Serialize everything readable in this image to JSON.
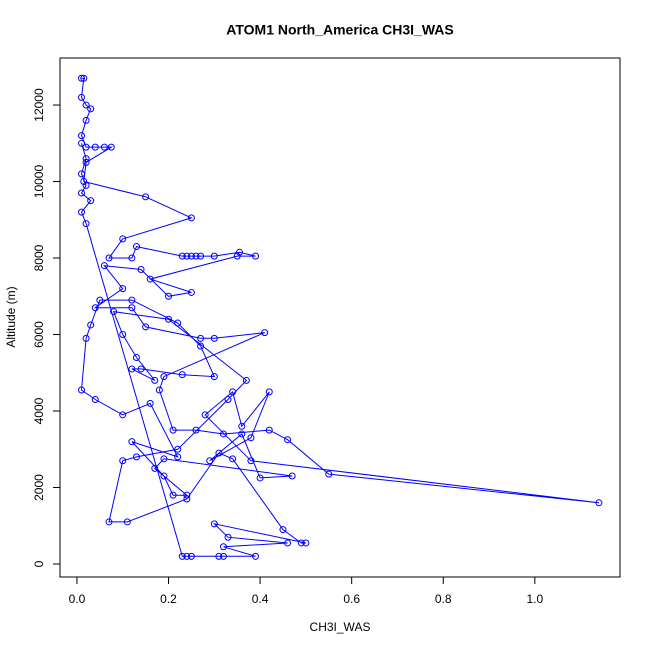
{
  "chart_data": {
    "type": "line",
    "title": "ATOM1 North_America CH3I_WAS",
    "x_label": "CH3I_WAS",
    "y_label": "Altitude (m)",
    "xlim": [
      -0.037,
      1.186
    ],
    "ylim": [
      -340,
      13230
    ],
    "xticks": [
      {
        "value": 0,
        "label": "0.0"
      },
      {
        "value": 0.2,
        "label": "0.2"
      },
      {
        "value": 0.4,
        "label": "0.4"
      },
      {
        "value": 0.6,
        "label": "0.6"
      },
      {
        "value": 0.8,
        "label": "0.8"
      },
      {
        "value": 1.0,
        "label": "1.0"
      }
    ],
    "yticks": [
      0,
      2000,
      4000,
      6000,
      8000,
      10000,
      12000
    ],
    "markers": true,
    "x": [
      0.01,
      0.015,
      0.01,
      0.02,
      0.03,
      0.02,
      0.01,
      0.02,
      0.04,
      0.06,
      0.075,
      0.02,
      0.015,
      0.15,
      0.25,
      0.1,
      0.07,
      0.12,
      0.13,
      0.23,
      0.26,
      0.27,
      0.25,
      0.24,
      0.3,
      0.355,
      0.39,
      0.35,
      0.16,
      0.25,
      0.2,
      0.14,
      0.06,
      0.1,
      0.04,
      0.12,
      0.15,
      0.27,
      0.3,
      0.41,
      0.19,
      0.18,
      0.21,
      0.26,
      0.32,
      0.42,
      0.46,
      0.55,
      1.14,
      0.38,
      0.28,
      0.34,
      0.36,
      0.42,
      0.38,
      0.29,
      0.36,
      0.4,
      0.47,
      0.19,
      0.17,
      0.24,
      0.21,
      0.19,
      0.12,
      0.22,
      0.16,
      0.1,
      0.04,
      0.01,
      0.02,
      0.03,
      0.05,
      0.12,
      0.22,
      0.27,
      0.3,
      0.23,
      0.14,
      0.12,
      0.17,
      0.13,
      0.1,
      0.08,
      0.2,
      0.37,
      0.33,
      0.22,
      0.13,
      0.1,
      0.07,
      0.11,
      0.24,
      0.31,
      0.34,
      0.45,
      0.49,
      0.5,
      0.3,
      0.33,
      0.46,
      0.32,
      0.39,
      0.31,
      0.32,
      0.24,
      0.25,
      0.23,
      0.02,
      0.01,
      0.03,
      0.01,
      0.02,
      0.01,
      0.02,
      0.01
    ],
    "series": [
      {
        "color": "#0000ff",
        "values": [
          12700,
          12700,
          12200,
          12000,
          11900,
          11600,
          11200,
          10900,
          10900,
          10900,
          10900,
          10500,
          10000,
          9600,
          9050,
          8500,
          8000,
          8000,
          8300,
          8050,
          8050,
          8050,
          8050,
          8050,
          8050,
          8150,
          8050,
          8050,
          7450,
          7100,
          7000,
          7700,
          7800,
          7200,
          6700,
          6700,
          6200,
          5900,
          5900,
          6050,
          4900,
          4550,
          3500,
          3500,
          3400,
          3500,
          3250,
          2350,
          1600,
          2700,
          3900,
          4500,
          3600,
          4500,
          3300,
          2700,
          3400,
          2250,
          2300,
          2750,
          2500,
          1800,
          1800,
          2300,
          3200,
          2800,
          4200,
          3900,
          4300,
          4550,
          5900,
          6250,
          6900,
          6900,
          6300,
          5700,
          4900,
          4950,
          5100,
          5100,
          4800,
          5400,
          6000,
          6600,
          6400,
          4800,
          4300,
          3000,
          2800,
          2700,
          1100,
          1100,
          1700,
          2900,
          2750,
          900,
          550,
          550,
          1050,
          700,
          550,
          450,
          200,
          200,
          200,
          200,
          200,
          200,
          8900,
          9200,
          9500,
          9700,
          9900,
          10200,
          10600,
          11000
        ]
      }
    ]
  }
}
